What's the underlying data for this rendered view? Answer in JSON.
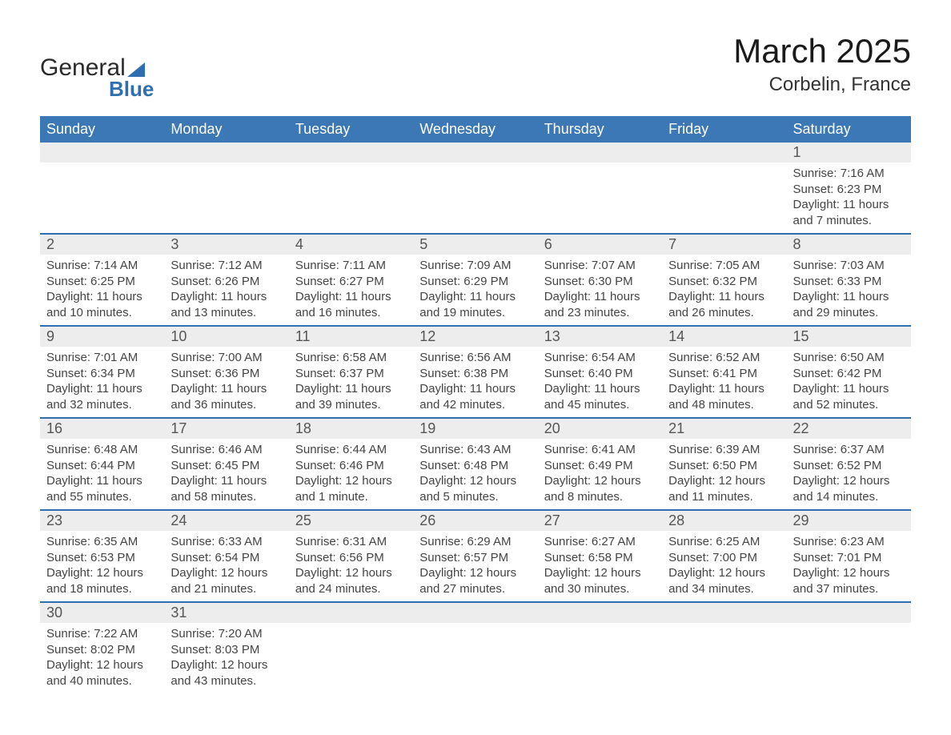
{
  "brand": {
    "word1": "General",
    "word2": "Blue"
  },
  "title": {
    "month": "March 2025",
    "location": "Corbelin, France"
  },
  "colors": {
    "header_bg": "#3b78b5",
    "header_text": "#ffffff",
    "row_divider": "#2f6fb0",
    "daynum_bg": "#ededed",
    "body_text": "#444444",
    "page_bg": "#ffffff",
    "logo_accent": "#2f6fb0"
  },
  "typography": {
    "title_fontsize_pt": 32,
    "location_fontsize_pt": 18,
    "dayheader_fontsize_pt": 14,
    "daynum_fontsize_pt": 14,
    "body_fontsize_pt": 11,
    "font_family": "Arial"
  },
  "day_headers": [
    "Sunday",
    "Monday",
    "Tuesday",
    "Wednesday",
    "Thursday",
    "Friday",
    "Saturday"
  ],
  "weeks": [
    [
      null,
      null,
      null,
      null,
      null,
      null,
      {
        "n": "1",
        "sr": "Sunrise: 7:16 AM",
        "ss": "Sunset: 6:23 PM",
        "dl": "Daylight: 11 hours and 7 minutes."
      }
    ],
    [
      {
        "n": "2",
        "sr": "Sunrise: 7:14 AM",
        "ss": "Sunset: 6:25 PM",
        "dl": "Daylight: 11 hours and 10 minutes."
      },
      {
        "n": "3",
        "sr": "Sunrise: 7:12 AM",
        "ss": "Sunset: 6:26 PM",
        "dl": "Daylight: 11 hours and 13 minutes."
      },
      {
        "n": "4",
        "sr": "Sunrise: 7:11 AM",
        "ss": "Sunset: 6:27 PM",
        "dl": "Daylight: 11 hours and 16 minutes."
      },
      {
        "n": "5",
        "sr": "Sunrise: 7:09 AM",
        "ss": "Sunset: 6:29 PM",
        "dl": "Daylight: 11 hours and 19 minutes."
      },
      {
        "n": "6",
        "sr": "Sunrise: 7:07 AM",
        "ss": "Sunset: 6:30 PM",
        "dl": "Daylight: 11 hours and 23 minutes."
      },
      {
        "n": "7",
        "sr": "Sunrise: 7:05 AM",
        "ss": "Sunset: 6:32 PM",
        "dl": "Daylight: 11 hours and 26 minutes."
      },
      {
        "n": "8",
        "sr": "Sunrise: 7:03 AM",
        "ss": "Sunset: 6:33 PM",
        "dl": "Daylight: 11 hours and 29 minutes."
      }
    ],
    [
      {
        "n": "9",
        "sr": "Sunrise: 7:01 AM",
        "ss": "Sunset: 6:34 PM",
        "dl": "Daylight: 11 hours and 32 minutes."
      },
      {
        "n": "10",
        "sr": "Sunrise: 7:00 AM",
        "ss": "Sunset: 6:36 PM",
        "dl": "Daylight: 11 hours and 36 minutes."
      },
      {
        "n": "11",
        "sr": "Sunrise: 6:58 AM",
        "ss": "Sunset: 6:37 PM",
        "dl": "Daylight: 11 hours and 39 minutes."
      },
      {
        "n": "12",
        "sr": "Sunrise: 6:56 AM",
        "ss": "Sunset: 6:38 PM",
        "dl": "Daylight: 11 hours and 42 minutes."
      },
      {
        "n": "13",
        "sr": "Sunrise: 6:54 AM",
        "ss": "Sunset: 6:40 PM",
        "dl": "Daylight: 11 hours and 45 minutes."
      },
      {
        "n": "14",
        "sr": "Sunrise: 6:52 AM",
        "ss": "Sunset: 6:41 PM",
        "dl": "Daylight: 11 hours and 48 minutes."
      },
      {
        "n": "15",
        "sr": "Sunrise: 6:50 AM",
        "ss": "Sunset: 6:42 PM",
        "dl": "Daylight: 11 hours and 52 minutes."
      }
    ],
    [
      {
        "n": "16",
        "sr": "Sunrise: 6:48 AM",
        "ss": "Sunset: 6:44 PM",
        "dl": "Daylight: 11 hours and 55 minutes."
      },
      {
        "n": "17",
        "sr": "Sunrise: 6:46 AM",
        "ss": "Sunset: 6:45 PM",
        "dl": "Daylight: 11 hours and 58 minutes."
      },
      {
        "n": "18",
        "sr": "Sunrise: 6:44 AM",
        "ss": "Sunset: 6:46 PM",
        "dl": "Daylight: 12 hours and 1 minute."
      },
      {
        "n": "19",
        "sr": "Sunrise: 6:43 AM",
        "ss": "Sunset: 6:48 PM",
        "dl": "Daylight: 12 hours and 5 minutes."
      },
      {
        "n": "20",
        "sr": "Sunrise: 6:41 AM",
        "ss": "Sunset: 6:49 PM",
        "dl": "Daylight: 12 hours and 8 minutes."
      },
      {
        "n": "21",
        "sr": "Sunrise: 6:39 AM",
        "ss": "Sunset: 6:50 PM",
        "dl": "Daylight: 12 hours and 11 minutes."
      },
      {
        "n": "22",
        "sr": "Sunrise: 6:37 AM",
        "ss": "Sunset: 6:52 PM",
        "dl": "Daylight: 12 hours and 14 minutes."
      }
    ],
    [
      {
        "n": "23",
        "sr": "Sunrise: 6:35 AM",
        "ss": "Sunset: 6:53 PM",
        "dl": "Daylight: 12 hours and 18 minutes."
      },
      {
        "n": "24",
        "sr": "Sunrise: 6:33 AM",
        "ss": "Sunset: 6:54 PM",
        "dl": "Daylight: 12 hours and 21 minutes."
      },
      {
        "n": "25",
        "sr": "Sunrise: 6:31 AM",
        "ss": "Sunset: 6:56 PM",
        "dl": "Daylight: 12 hours and 24 minutes."
      },
      {
        "n": "26",
        "sr": "Sunrise: 6:29 AM",
        "ss": "Sunset: 6:57 PM",
        "dl": "Daylight: 12 hours and 27 minutes."
      },
      {
        "n": "27",
        "sr": "Sunrise: 6:27 AM",
        "ss": "Sunset: 6:58 PM",
        "dl": "Daylight: 12 hours and 30 minutes."
      },
      {
        "n": "28",
        "sr": "Sunrise: 6:25 AM",
        "ss": "Sunset: 7:00 PM",
        "dl": "Daylight: 12 hours and 34 minutes."
      },
      {
        "n": "29",
        "sr": "Sunrise: 6:23 AM",
        "ss": "Sunset: 7:01 PM",
        "dl": "Daylight: 12 hours and 37 minutes."
      }
    ],
    [
      {
        "n": "30",
        "sr": "Sunrise: 7:22 AM",
        "ss": "Sunset: 8:02 PM",
        "dl": "Daylight: 12 hours and 40 minutes."
      },
      {
        "n": "31",
        "sr": "Sunrise: 7:20 AM",
        "ss": "Sunset: 8:03 PM",
        "dl": "Daylight: 12 hours and 43 minutes."
      },
      null,
      null,
      null,
      null,
      null
    ]
  ]
}
